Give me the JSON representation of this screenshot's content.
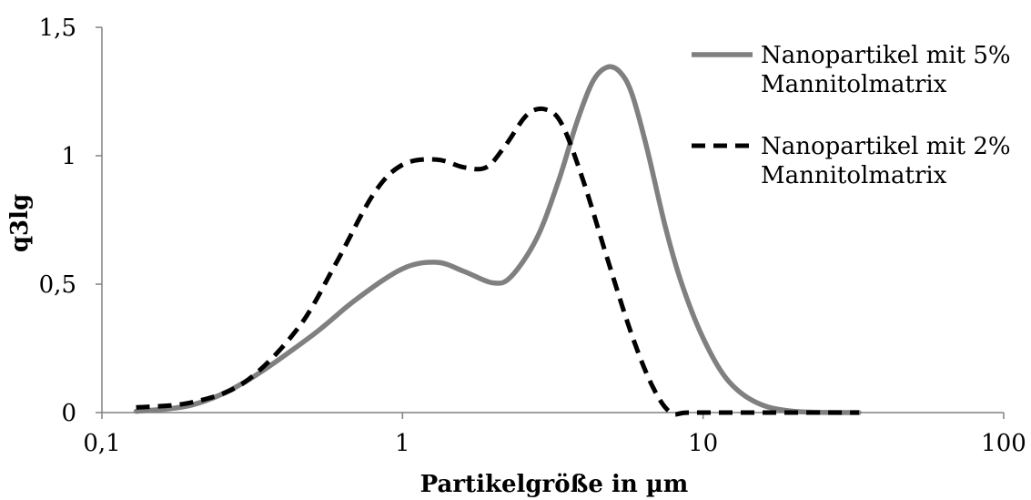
{
  "chart_data": {
    "type": "line",
    "xscale": "log",
    "xlim": [
      0.1,
      100
    ],
    "ylim": [
      0,
      1.5
    ],
    "xticks": [
      "0,1",
      "1",
      "10",
      "100"
    ],
    "yticks": [
      "0",
      "0,5",
      "1",
      "1,5"
    ],
    "xlabel": "Partikelgröße in µm",
    "ylabel": "q3lg",
    "grid": false,
    "legend_position": "top-right",
    "series": [
      {
        "name": [
          "Nanopartikel mit 5%",
          "Mannitolmatrix"
        ],
        "style": "solid",
        "color": "#808080",
        "points": [
          [
            0.13,
            0.005
          ],
          [
            0.2,
            0.03
          ],
          [
            0.3,
            0.12
          ],
          [
            0.5,
            0.3
          ],
          [
            0.7,
            0.44
          ],
          [
            1.0,
            0.56
          ],
          [
            1.3,
            0.585
          ],
          [
            1.6,
            0.55
          ],
          [
            2.0,
            0.505
          ],
          [
            2.3,
            0.53
          ],
          [
            2.8,
            0.68
          ],
          [
            3.3,
            0.9
          ],
          [
            3.8,
            1.13
          ],
          [
            4.3,
            1.29
          ],
          [
            4.8,
            1.345
          ],
          [
            5.3,
            1.325
          ],
          [
            5.8,
            1.24
          ],
          [
            6.5,
            1.03
          ],
          [
            7.5,
            0.72
          ],
          [
            8.5,
            0.5
          ],
          [
            10.0,
            0.29
          ],
          [
            12.0,
            0.13
          ],
          [
            15.0,
            0.04
          ],
          [
            20.0,
            0.005
          ],
          [
            33.0,
            0.0
          ]
        ]
      },
      {
        "name": [
          "Nanopartikel mit 2%",
          "Mannitolmatrix"
        ],
        "style": "dashed",
        "color": "#000000",
        "points": [
          [
            0.13,
            0.02
          ],
          [
            0.2,
            0.04
          ],
          [
            0.3,
            0.12
          ],
          [
            0.45,
            0.33
          ],
          [
            0.6,
            0.58
          ],
          [
            0.8,
            0.85
          ],
          [
            1.0,
            0.965
          ],
          [
            1.3,
            0.985
          ],
          [
            1.6,
            0.955
          ],
          [
            1.9,
            0.955
          ],
          [
            2.2,
            1.04
          ],
          [
            2.6,
            1.16
          ],
          [
            3.0,
            1.18
          ],
          [
            3.4,
            1.12
          ],
          [
            4.0,
            0.9
          ],
          [
            4.8,
            0.6
          ],
          [
            5.8,
            0.3
          ],
          [
            6.8,
            0.1
          ],
          [
            7.8,
            0.0
          ],
          [
            9.0,
            0.0
          ],
          [
            15.0,
            0.0
          ],
          [
            33.0,
            0.0
          ]
        ]
      }
    ]
  }
}
